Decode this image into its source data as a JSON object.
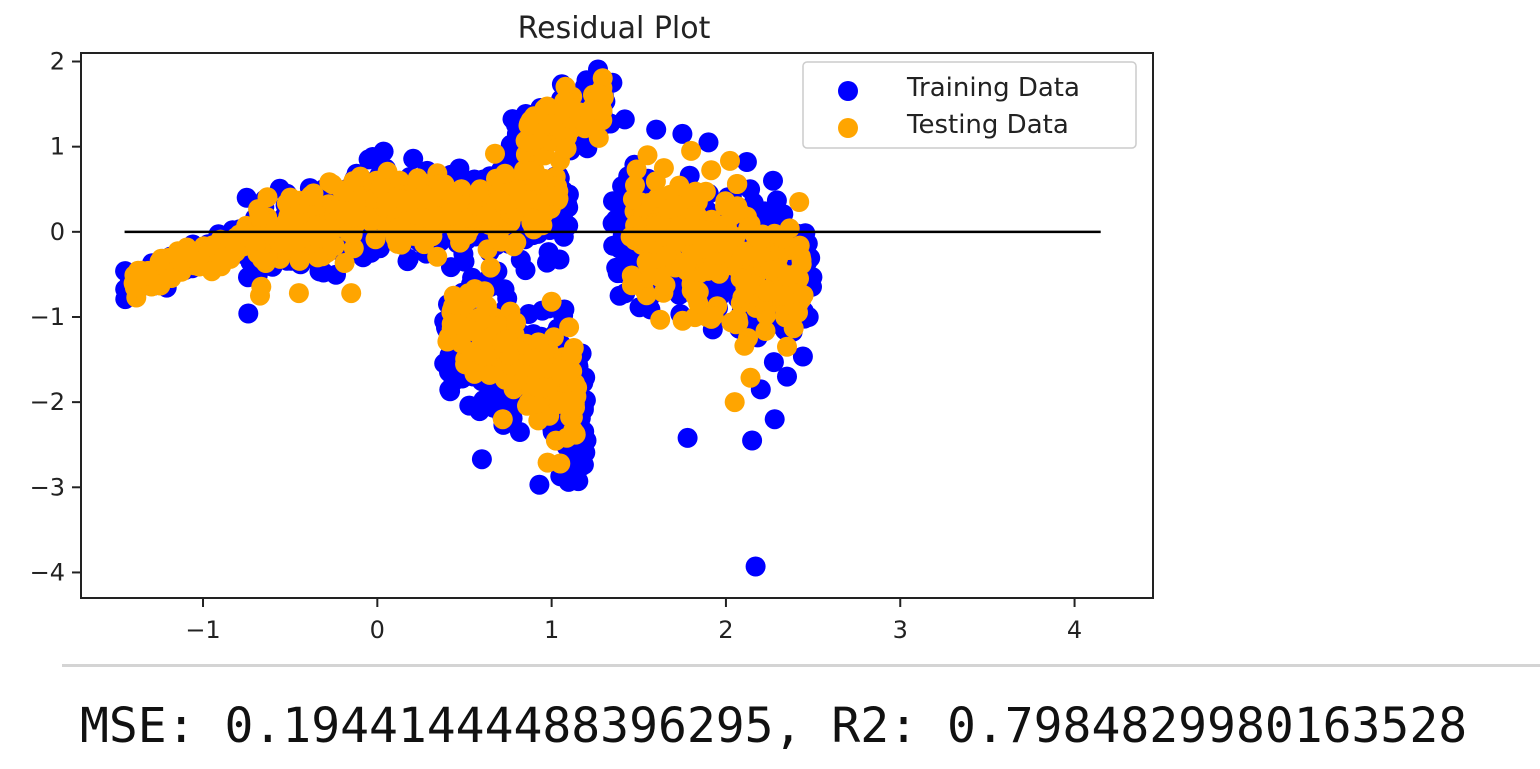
{
  "chart_data": {
    "type": "scatter",
    "title": "Residual Plot",
    "xlabel": "",
    "ylabel": "",
    "xlim": [
      -1.7,
      4.45
    ],
    "ylim": [
      -4.3,
      2.1
    ],
    "x_ticks": [
      -1,
      0,
      1,
      2,
      3,
      4
    ],
    "x_tick_labels": [
      "−1",
      "0",
      "1",
      "2",
      "3",
      "4"
    ],
    "y_ticks": [
      2,
      1,
      0,
      -1,
      -2,
      -3,
      -4
    ],
    "y_tick_labels": [
      "2",
      "1",
      "0",
      "−1",
      "−2",
      "−3",
      "−4"
    ],
    "grid": false,
    "legend_position": "top-right",
    "hline": {
      "y": 0,
      "xmin": -1.45,
      "xmax": 4.15,
      "color": "#000000"
    },
    "series": [
      {
        "name": "Training Data",
        "color": "#0000ff",
        "clusters": [
          {
            "x": [
              -1.45,
              -0.75
            ],
            "y_at_x0": -0.65,
            "y_at_x1": -0.05,
            "spread": 0.22,
            "count": 110
          },
          {
            "x": [
              -0.75,
              0.1
            ],
            "y_at_x0": -0.2,
            "y_at_x1": 0.35,
            "spread": 0.55,
            "count": 220
          },
          {
            "x": [
              0.1,
              1.1
            ],
            "y_at_x0": 0.1,
            "y_at_x1": 0.3,
            "spread": 0.6,
            "count": 260
          },
          {
            "x": [
              0.75,
              1.35
            ],
            "y_at_x0": 1.0,
            "y_at_x1": 1.55,
            "spread": 0.45,
            "count": 110
          },
          {
            "x": [
              0.38,
              0.82
            ],
            "y_at_x0": -1.2,
            "y_at_x1": -1.6,
            "spread": 0.9,
            "count": 150
          },
          {
            "x": [
              0.85,
              1.2
            ],
            "y_at_x0": -1.5,
            "y_at_x1": -2.0,
            "spread": 0.95,
            "count": 110
          },
          {
            "x": [
              1.35,
              2.5
            ],
            "y_at_x0": 0.0,
            "y_at_x1": -0.6,
            "spread": 1.0,
            "count": 330
          }
        ],
        "points": [
          {
            "x": 2.17,
            "y": -3.93
          },
          {
            "x": 1.78,
            "y": -2.42
          },
          {
            "x": 0.6,
            "y": -2.67
          },
          {
            "x": 0.93,
            "y": -2.97
          },
          {
            "x": 1.05,
            "y": -2.87
          },
          {
            "x": 1.2,
            "y": -2.45
          },
          {
            "x": 2.15,
            "y": -2.45
          },
          {
            "x": 2.28,
            "y": -2.2
          },
          {
            "x": 1.42,
            "y": 1.32
          },
          {
            "x": 1.6,
            "y": 1.2
          },
          {
            "x": 1.75,
            "y": 1.15
          },
          {
            "x": 1.9,
            "y": 1.05
          },
          {
            "x": 2.12,
            "y": 0.82
          },
          {
            "x": 2.27,
            "y": 0.6
          },
          {
            "x": 1.2,
            "y": 1.78
          },
          {
            "x": 1.3,
            "y": 1.6
          },
          {
            "x": -0.05,
            "y": 0.85
          },
          {
            "x": 0.85,
            "y": -0.45
          },
          {
            "x": 0.5,
            "y": -0.35
          },
          {
            "x": 2.35,
            "y": -1.7
          },
          {
            "x": 2.2,
            "y": -1.85
          },
          {
            "x": 1.35,
            "y": 0.1
          }
        ]
      },
      {
        "name": "Testing Data",
        "color": "#ffa500",
        "clusters": [
          {
            "x": [
              -1.4,
              -0.75
            ],
            "y_at_x0": -0.6,
            "y_at_x1": -0.1,
            "spread": 0.2,
            "count": 90
          },
          {
            "x": [
              -0.7,
              0.1
            ],
            "y_at_x0": -0.1,
            "y_at_x1": 0.4,
            "spread": 0.5,
            "count": 180
          },
          {
            "x": [
              0.1,
              1.05
            ],
            "y_at_x0": 0.2,
            "y_at_x1": 0.4,
            "spread": 0.55,
            "count": 210
          },
          {
            "x": [
              0.85,
              1.3
            ],
            "y_at_x0": 1.1,
            "y_at_x1": 1.5,
            "spread": 0.4,
            "count": 90
          },
          {
            "x": [
              0.4,
              0.8
            ],
            "y_at_x0": -1.1,
            "y_at_x1": -1.4,
            "spread": 0.65,
            "count": 110
          },
          {
            "x": [
              0.85,
              1.15
            ],
            "y_at_x0": -1.7,
            "y_at_x1": -2.1,
            "spread": 0.7,
            "count": 75
          },
          {
            "x": [
              1.45,
              2.45
            ],
            "y_at_x0": 0.1,
            "y_at_x1": -0.7,
            "spread": 0.95,
            "count": 280
          }
        ],
        "points": [
          {
            "x": 1.05,
            "y": -2.72
          },
          {
            "x": 0.72,
            "y": -2.2
          },
          {
            "x": 2.35,
            "y": -1.35
          },
          {
            "x": 2.42,
            "y": 0.35
          },
          {
            "x": 1.8,
            "y": 0.95
          },
          {
            "x": 1.55,
            "y": 0.9
          },
          {
            "x": 1.1,
            "y": -1.12
          },
          {
            "x": 1.0,
            "y": -0.82
          },
          {
            "x": 2.05,
            "y": -2.0
          },
          {
            "x": -0.45,
            "y": -0.72
          },
          {
            "x": -0.15,
            "y": -0.72
          },
          {
            "x": 0.65,
            "y": -0.42
          }
        ]
      }
    ]
  },
  "footer": {
    "metrics_text": "MSE: 0.19441444488396295, R2: 0.7984829980163528"
  }
}
